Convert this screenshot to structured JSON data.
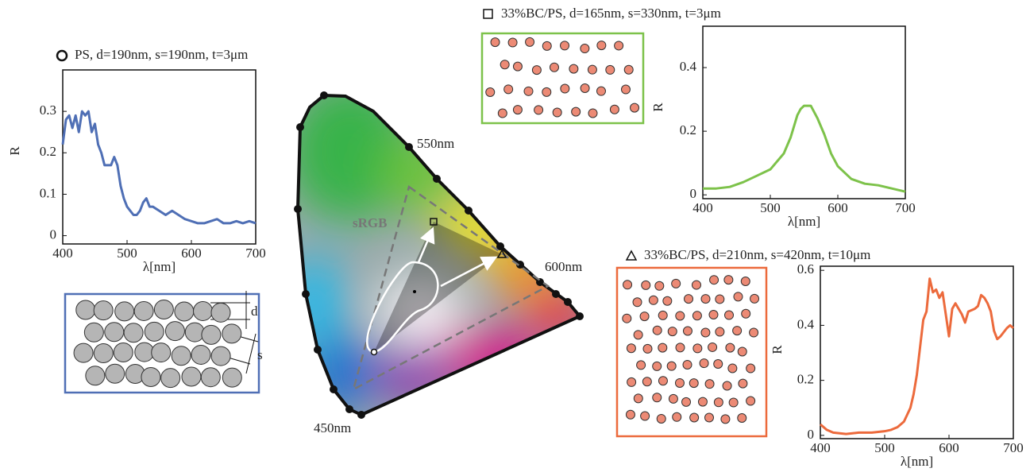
{
  "chart_data": [
    {
      "type": "line",
      "title": "PS, d=190nm, s=190nm, t=3μm",
      "xlabel": "λ[nm]",
      "ylabel": "R",
      "color": "#4f6fb5",
      "x": [
        400,
        405,
        410,
        415,
        420,
        425,
        430,
        435,
        440,
        445,
        450,
        455,
        460,
        465,
        470,
        475,
        480,
        485,
        490,
        495,
        500,
        505,
        510,
        515,
        520,
        525,
        530,
        535,
        540,
        550,
        560,
        570,
        580,
        590,
        600,
        610,
        620,
        630,
        640,
        650,
        660,
        670,
        680,
        690,
        700
      ],
      "values": [
        0.22,
        0.28,
        0.29,
        0.26,
        0.29,
        0.25,
        0.3,
        0.29,
        0.3,
        0.25,
        0.27,
        0.22,
        0.2,
        0.17,
        0.17,
        0.17,
        0.19,
        0.17,
        0.12,
        0.09,
        0.07,
        0.06,
        0.05,
        0.05,
        0.06,
        0.08,
        0.09,
        0.07,
        0.07,
        0.06,
        0.05,
        0.06,
        0.05,
        0.04,
        0.035,
        0.03,
        0.03,
        0.035,
        0.04,
        0.03,
        0.03,
        0.035,
        0.03,
        0.035,
        0.03
      ],
      "xlim": [
        400,
        700
      ],
      "xticks": [
        400,
        500,
        600,
        700
      ],
      "ylim": [
        -0.02,
        0.4
      ],
      "yticks": [
        0,
        0.1,
        0.2,
        0.3
      ]
    },
    {
      "type": "line",
      "title": "33%BC/PS, d=165nm, s=330nm, t=3μm",
      "xlabel": "λ[nm]",
      "ylabel": "R",
      "color": "#7dc24a",
      "x": [
        400,
        420,
        440,
        460,
        480,
        500,
        520,
        530,
        540,
        545,
        550,
        555,
        560,
        570,
        580,
        590,
        600,
        620,
        640,
        660,
        680,
        700
      ],
      "values": [
        0.02,
        0.02,
        0.025,
        0.04,
        0.06,
        0.08,
        0.13,
        0.18,
        0.25,
        0.27,
        0.28,
        0.28,
        0.28,
        0.24,
        0.19,
        0.13,
        0.09,
        0.05,
        0.035,
        0.03,
        0.02,
        0.01
      ],
      "xlim": [
        400,
        700
      ],
      "xticks": [
        400,
        500,
        600,
        700
      ],
      "ylim": [
        -0.012,
        0.53
      ],
      "yticks": [
        0,
        0.2,
        0.4
      ]
    },
    {
      "type": "line",
      "title": "33%BC/PS, d=210nm, s=420nm, t=10μm",
      "xlabel": "λ[nm]",
      "ylabel": "R",
      "color": "#ec6a3c",
      "x": [
        400,
        410,
        420,
        440,
        460,
        480,
        500,
        510,
        520,
        530,
        540,
        545,
        550,
        555,
        560,
        565,
        570,
        575,
        580,
        585,
        590,
        595,
        600,
        605,
        610,
        615,
        620,
        625,
        630,
        640,
        645,
        650,
        655,
        660,
        665,
        670,
        675,
        680,
        690,
        695,
        700
      ],
      "values": [
        0.04,
        0.02,
        0.01,
        0.005,
        0.01,
        0.01,
        0.015,
        0.02,
        0.03,
        0.05,
        0.1,
        0.15,
        0.22,
        0.32,
        0.42,
        0.45,
        0.57,
        0.52,
        0.53,
        0.5,
        0.52,
        0.44,
        0.36,
        0.46,
        0.48,
        0.46,
        0.44,
        0.41,
        0.45,
        0.46,
        0.47,
        0.51,
        0.5,
        0.48,
        0.45,
        0.38,
        0.35,
        0.36,
        0.39,
        0.4,
        0.39
      ],
      "xlim": [
        400,
        700
      ],
      "xticks": [
        400,
        500,
        600,
        700
      ],
      "ylim": [
        -0.012,
        0.615
      ],
      "yticks": [
        0,
        0.2,
        0.4,
        0.6
      ]
    }
  ],
  "chromaticity": {
    "labels": [
      "550nm",
      "600nm",
      "450nm"
    ],
    "gamut": "sRGB"
  },
  "schematic": {
    "d": "d",
    "s": "s"
  }
}
